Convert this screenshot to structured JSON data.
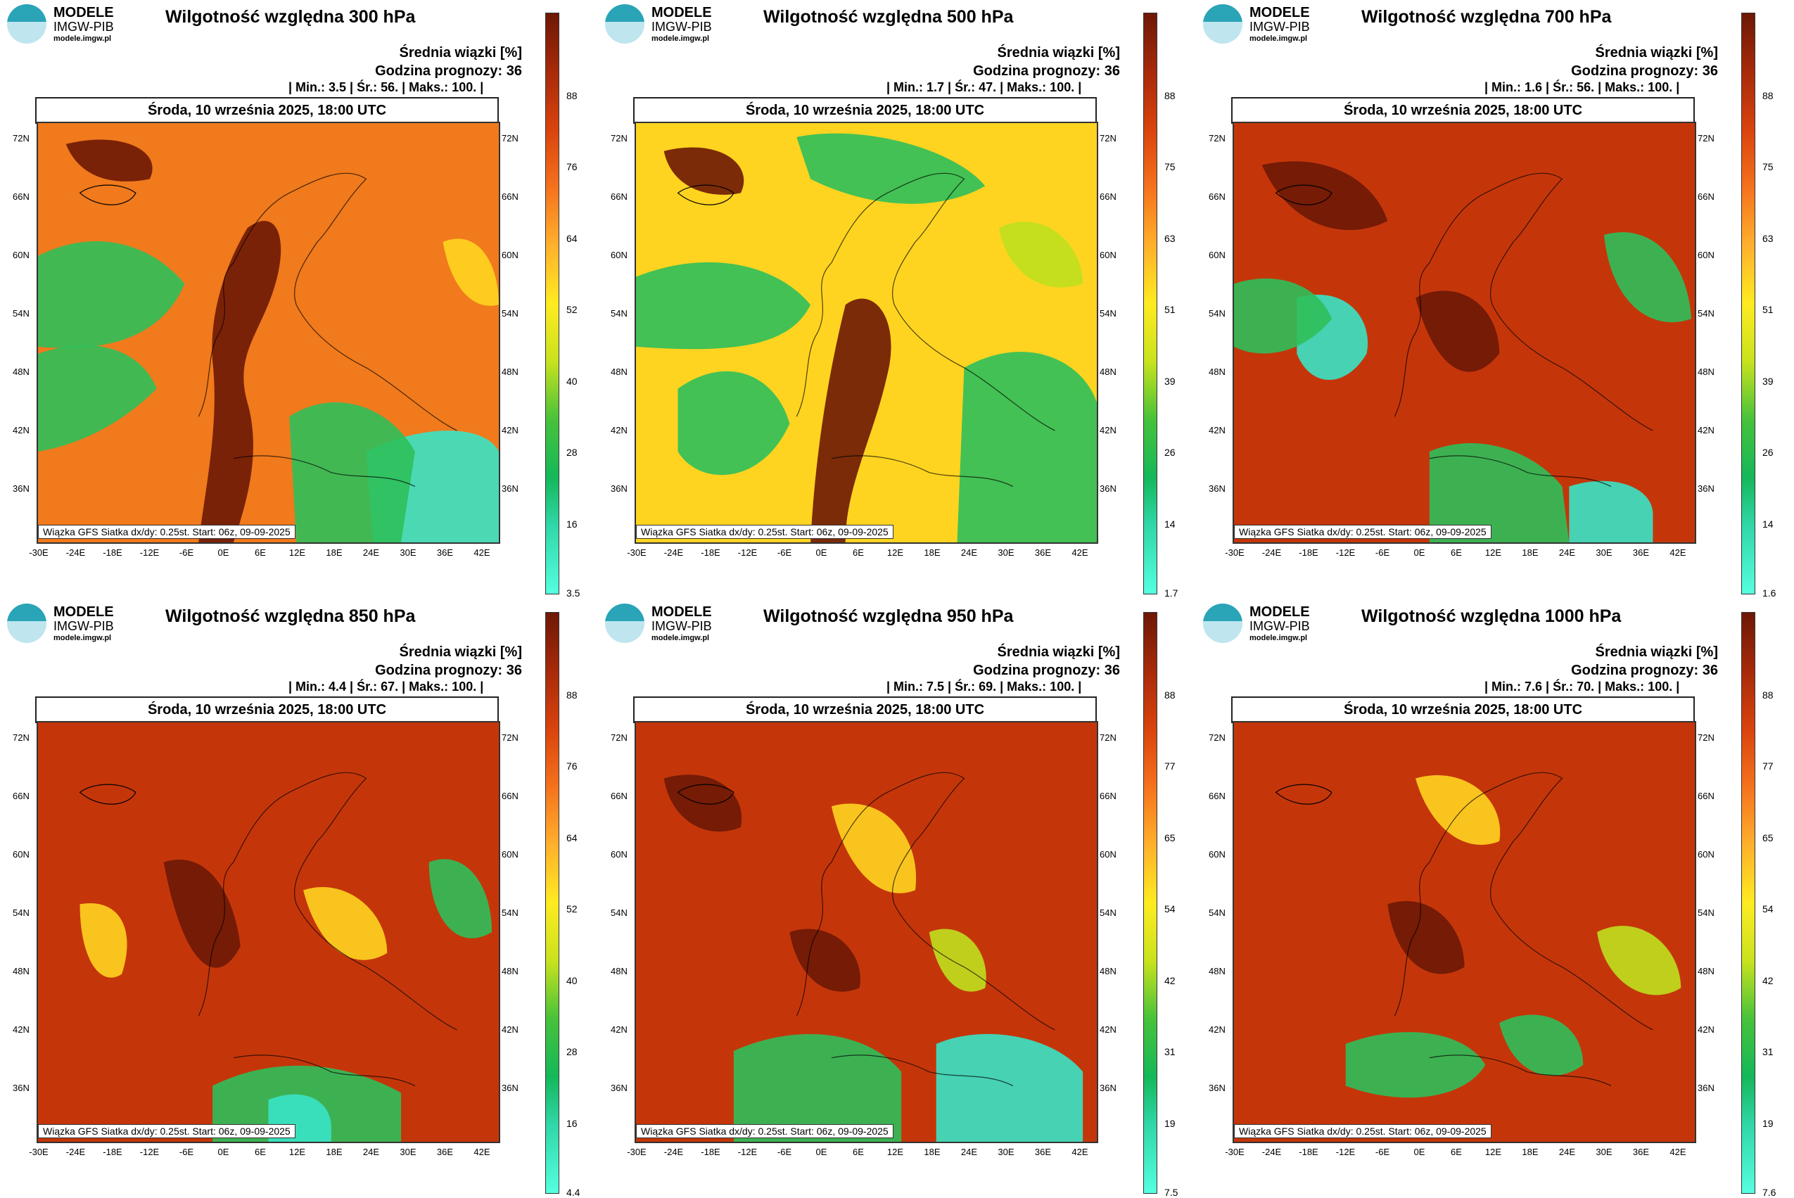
{
  "logo": {
    "name": "MODELE",
    "org": "IMGW-PIB",
    "url": "modele.imgw.pl"
  },
  "common": {
    "avg_label": "Średnia wiązki [%]",
    "hour_label": "Godzina prognozy: 36",
    "date": "Środa, 10 września 2025, 18:00 UTC",
    "footer": "Wiązka GFS Siatka dx/dy: 0.25st. Start: 06z, 09-09-2025",
    "lat_labels": [
      "72N",
      "66N",
      "60N",
      "54N",
      "48N",
      "42N",
      "36N"
    ],
    "lon_labels": [
      "-30E",
      "-24E",
      "-18E",
      "-12E",
      "-6E",
      "0E",
      "6E",
      "12E",
      "18E",
      "24E",
      "30E",
      "36E",
      "42E"
    ]
  },
  "panels": [
    {
      "title": "Wilgotność względna 300 hPa",
      "stats": "| Min.:     3.5 | Śr.:     56. | Maks.:     100. |",
      "ticks": [
        "88",
        "76",
        "64",
        "52",
        "40",
        "28",
        "16",
        "3.5"
      ],
      "theme": "dry"
    },
    {
      "title": "Wilgotność względna 500 hPa",
      "stats": "| Min.:     1.7 | Śr.:     47. | Maks.:     100. |",
      "ticks": [
        "88",
        "75",
        "63",
        "51",
        "39",
        "26",
        "14",
        "1.7"
      ],
      "theme": "mixed"
    },
    {
      "title": "Wilgotność względna 700 hPa",
      "stats": "| Min.:     1.6 | Śr.:     56. | Maks.:     100. |",
      "ticks": [
        "88",
        "75",
        "63",
        "51",
        "39",
        "26",
        "14",
        "1.6"
      ],
      "theme": "mixed2"
    },
    {
      "title": "Wilgotność względna 850 hPa",
      "stats": "| Min.:     4.4 | Śr.:     67. | Maks.:     100. |",
      "ticks": [
        "88",
        "76",
        "64",
        "52",
        "40",
        "28",
        "16",
        "4.4"
      ],
      "theme": "wet"
    },
    {
      "title": "Wilgotność względna 950 hPa",
      "stats": "| Min.:     7.5 | Śr.:     69. | Maks.:     100. |",
      "ticks": [
        "88",
        "77",
        "65",
        "54",
        "42",
        "31",
        "19",
        "7.5"
      ],
      "theme": "wet2"
    },
    {
      "title": "Wilgotność względna 1000 hPa",
      "stats": "| Min.:     7.6 | Śr.:     70. | Maks.:     100. |",
      "ticks": [
        "88",
        "77",
        "65",
        "54",
        "42",
        "31",
        "19",
        "7.6"
      ],
      "theme": "wet3"
    }
  ],
  "colors": {
    "dark": "#6d1806",
    "red": "#c4360a",
    "orange": "#f07a1c",
    "yellow": "#ffd420",
    "lime": "#bfe01e",
    "green": "#2fbf5a",
    "cyan": "#38e3c5"
  }
}
